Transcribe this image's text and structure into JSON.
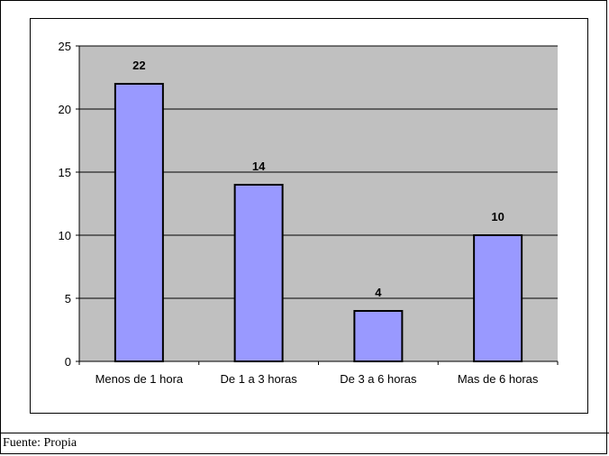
{
  "chart_data": {
    "type": "bar",
    "categories": [
      "Menos de 1 hora",
      "De 1 a 3 horas",
      "De 3 a 6 horas",
      "Mas de 6 horas"
    ],
    "values": [
      22,
      14,
      4,
      10
    ],
    "data_labels": [
      "22",
      "14",
      "4",
      "10"
    ],
    "ylim": [
      0,
      25
    ],
    "yticks": [
      0,
      5,
      10,
      15,
      20,
      25
    ],
    "ytick_labels": [
      "0",
      "5",
      "10",
      "15",
      "20",
      "25"
    ],
    "grid": true,
    "legend": "none",
    "colors": {
      "bar_fill": "#9999ff",
      "bar_stroke": "#000000",
      "plot_background": "#c0c0c0",
      "gridline": "#000000"
    }
  },
  "source_note": "Fuente: Propia"
}
